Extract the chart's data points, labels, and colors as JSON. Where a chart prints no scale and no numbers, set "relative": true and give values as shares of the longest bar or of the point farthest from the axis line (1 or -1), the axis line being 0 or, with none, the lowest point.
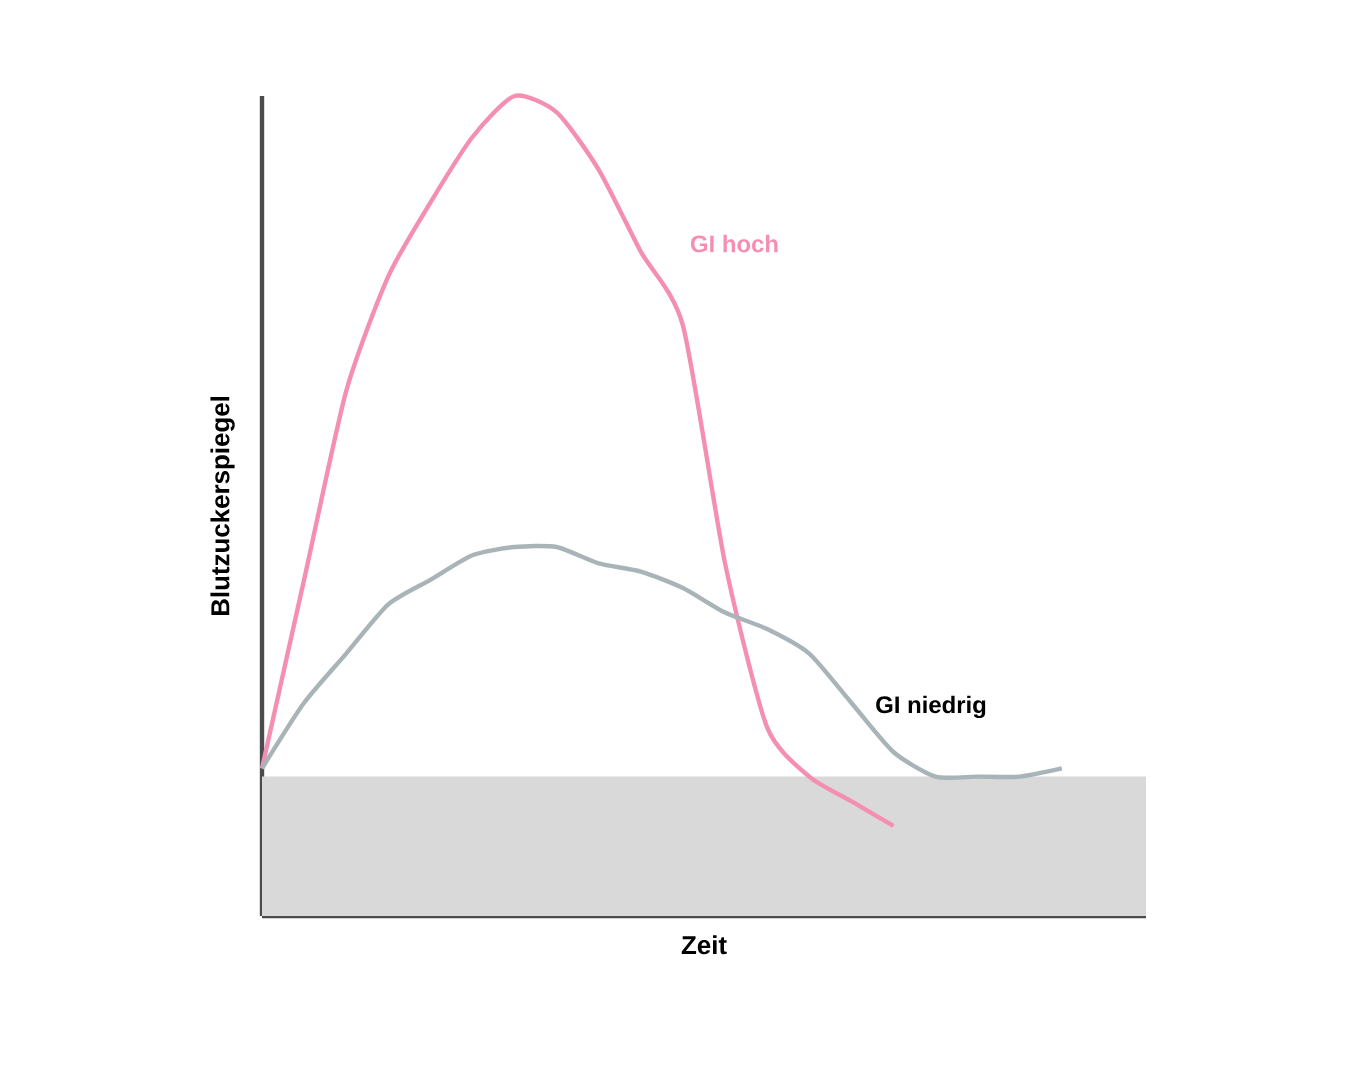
{
  "chart_data": {
    "type": "line",
    "relative": true,
    "xlabel": "Zeit",
    "ylabel": "Blutzuckerspiegel",
    "categories": [
      null,
      null,
      null,
      null,
      null,
      null,
      null,
      null,
      null,
      null,
      null,
      null,
      null,
      null,
      null,
      null,
      null,
      null,
      null,
      null,
      null,
      null
    ],
    "series": [
      {
        "name": "GI hoch",
        "color": "#f48fb1",
        "values": [
          0.18,
          0.41,
          0.64,
          0.78,
          0.87,
          0.95,
          1,
          0.98,
          0.91,
          0.81,
          0.72,
          0.43,
          0.23,
          0.17,
          0.14,
          0.11,
          null,
          null,
          null,
          null,
          null,
          null
        ]
      },
      {
        "name": "GI niedrig",
        "color": "#a9b4b8",
        "values": [
          0.18,
          0.26,
          0.32,
          0.38,
          0.41,
          0.44,
          0.45,
          0.45,
          0.43,
          0.42,
          0.4,
          0.37,
          0.35,
          0.32,
          0.26,
          0.2,
          0.17,
          0.17,
          0.17,
          0.18,
          null,
          null
        ]
      }
    ],
    "bands": [
      {
        "axis": "y",
        "from": 0,
        "to": 0.17,
        "color": "#d9d9d9"
      }
    ],
    "legend": false
  }
}
